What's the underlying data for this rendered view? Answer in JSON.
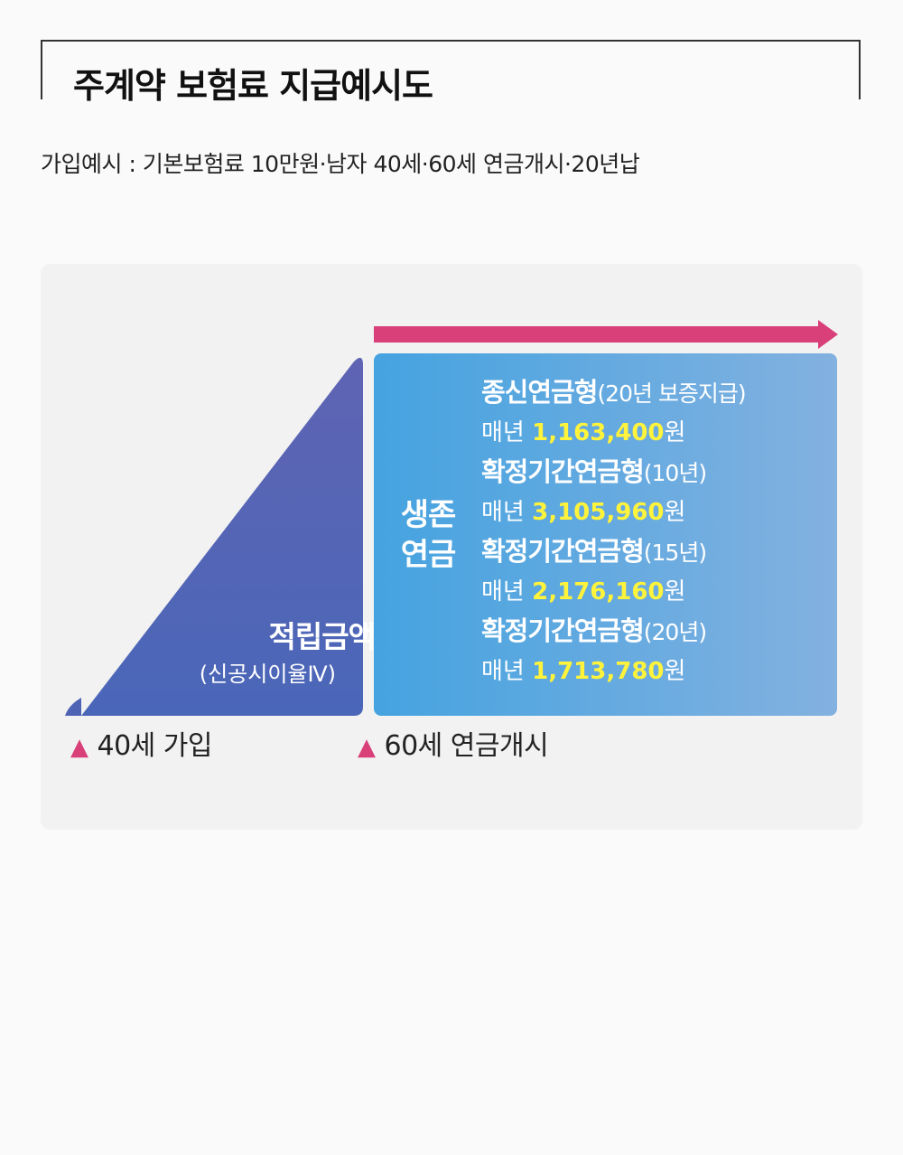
{
  "title": "주계약 보험료 지급예시도",
  "subtitle": "가입예시 : 기본보험료 10만원·남자 40세·60세 연금개시·20년납",
  "accumulation": {
    "label": "적립금액",
    "sublabel": "(신공시이율Ⅳ)"
  },
  "survival": {
    "label_line1": "생존",
    "label_line2": "연금"
  },
  "options": [
    {
      "name": "종신연금형",
      "paren": "(20년 보증지급)",
      "prefix": "매년",
      "amount": "1,163,400",
      "unit": "원"
    },
    {
      "name": "확정기간연금형",
      "paren": "(10년)",
      "prefix": "매년",
      "amount": "3,105,960",
      "unit": "원"
    },
    {
      "name": "확정기간연금형",
      "paren": "(15년)",
      "prefix": "매년",
      "amount": "2,176,160",
      "unit": "원"
    },
    {
      "name": "확정기간연금형",
      "paren": "(20년)",
      "prefix": "매년",
      "amount": "1,713,780",
      "unit": "원"
    }
  ],
  "markers": {
    "join": "40세 가입",
    "start": "60세 연금개시"
  },
  "colors": {
    "arrow": "#d9407a",
    "triangle_top": "#5a5fb0",
    "triangle_bottom": "#3b6fc2",
    "box_left": "#4aa5e0",
    "box_right": "#7fb0e0",
    "amount": "#fff33b"
  }
}
